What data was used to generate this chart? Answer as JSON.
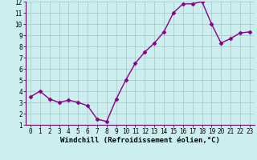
{
  "x": [
    0,
    1,
    2,
    3,
    4,
    5,
    6,
    7,
    8,
    9,
    10,
    11,
    12,
    13,
    14,
    15,
    16,
    17,
    18,
    19,
    20,
    21,
    22,
    23
  ],
  "y": [
    3.5,
    4.0,
    3.3,
    3.0,
    3.2,
    3.0,
    2.7,
    1.5,
    1.3,
    3.3,
    5.0,
    6.5,
    7.5,
    8.3,
    9.3,
    11.0,
    11.8,
    11.8,
    12.0,
    10.0,
    8.3,
    8.7,
    9.2,
    9.3
  ],
  "line_color": "#880088",
  "marker": "D",
  "marker_size": 2.5,
  "bg_color": "#cceeee",
  "grid_color": "#aacccc",
  "xlabel": "Windchill (Refroidissement éolien,°C)",
  "xlim": [
    -0.5,
    23.5
  ],
  "ylim": [
    1,
    12
  ],
  "yticks": [
    1,
    2,
    3,
    4,
    5,
    6,
    7,
    8,
    9,
    10,
    11,
    12
  ],
  "xticks": [
    0,
    1,
    2,
    3,
    4,
    5,
    6,
    7,
    8,
    9,
    10,
    11,
    12,
    13,
    14,
    15,
    16,
    17,
    18,
    19,
    20,
    21,
    22,
    23
  ],
  "tick_label_size": 5.5,
  "xlabel_size": 6.5,
  "linewidth": 1.0
}
